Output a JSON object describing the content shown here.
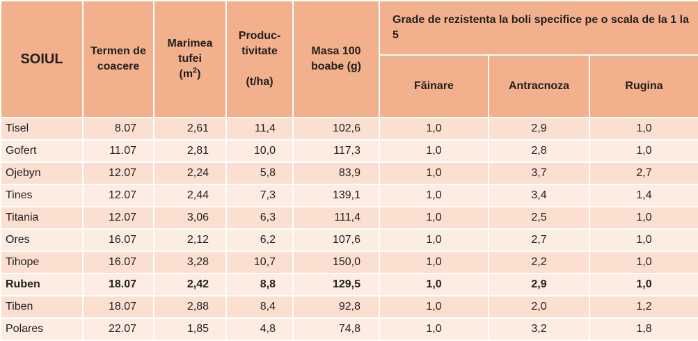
{
  "headers": {
    "soiul": "SOIUL",
    "termen": "Termen de coacere",
    "marimea": "Marimea tufei",
    "marimea_unit_pre": "(m",
    "marimea_unit_sup": "2",
    "marimea_unit_post": ")",
    "productivitate": "Produc-tivitate",
    "productivitate_unit": "(t/ha)",
    "masa": "Masa 100 boabe  (g)",
    "grade_group": "Grade de rezistenta la boli specifice pe o scala de la 1 la 5",
    "fainare": "Făinare",
    "antracnoza": "Antracnoza",
    "rugina": "Rugina"
  },
  "rows": [
    {
      "soi": "Tisel",
      "termen": "8.07",
      "marime": "2,61",
      "prod": "11,4",
      "masa": "102,6",
      "fainare": "1,0",
      "antracnoza": "2,9",
      "rugina": "1,0"
    },
    {
      "soi": "Gofert",
      "termen": "11.07",
      "marime": "2,81",
      "prod": "10,0",
      "masa": "117,3",
      "fainare": "1,0",
      "antracnoza": "2,8",
      "rugina": "1,0"
    },
    {
      "soi": "Ojebyn",
      "termen": "12.07",
      "marime": "2,24",
      "prod": "5,8",
      "masa": "83,9",
      "fainare": "1,0",
      "antracnoza": "3,7",
      "rugina": "2,7"
    },
    {
      "soi": "Tines",
      "termen": "12.07",
      "marime": "2,44",
      "prod": "7,3",
      "masa": "139,1",
      "fainare": "1,0",
      "antracnoza": "3,4",
      "rugina": "1,4"
    },
    {
      "soi": "Titania",
      "termen": "12.07",
      "marime": "3,06",
      "prod": "6,3",
      "masa": "111,4",
      "fainare": "1,0",
      "antracnoza": "2,5",
      "rugina": "1,0"
    },
    {
      "soi": "Ores",
      "termen": "16.07",
      "marime": "2,12",
      "prod": "6,2",
      "masa": "107,6",
      "fainare": "1,0",
      "antracnoza": "2,7",
      "rugina": "1,0"
    },
    {
      "soi": "Tihope",
      "termen": "16.07",
      "marime": "3,28",
      "prod": "10,7",
      "masa": "150,0",
      "fainare": "1,0",
      "antracnoza": "2,2",
      "rugina": "1,0"
    },
    {
      "soi": "Ruben",
      "termen": "18.07",
      "marime": "2,42",
      "prod": "8,8",
      "masa": "129,5",
      "fainare": "1,0",
      "antracnoza": "2,9",
      "rugina": "1,0",
      "bold": true
    },
    {
      "soi": "Tiben",
      "termen": "18.07",
      "marime": "2,88",
      "prod": "8,4",
      "masa": "92,8",
      "fainare": "1,0",
      "antracnoza": "2,0",
      "rugina": "1,2"
    },
    {
      "soi": "Polares",
      "termen": "22.07",
      "marime": "1,85",
      "prod": "4,8",
      "masa": "74,8",
      "fainare": "1,0",
      "antracnoza": "3,2",
      "rugina": "1,8"
    }
  ],
  "colors": {
    "header_bg": "#f2b08c",
    "row_bg": "#fbe0d1",
    "row_alt_bg": "#fdece2",
    "grid": "#ffffff"
  }
}
